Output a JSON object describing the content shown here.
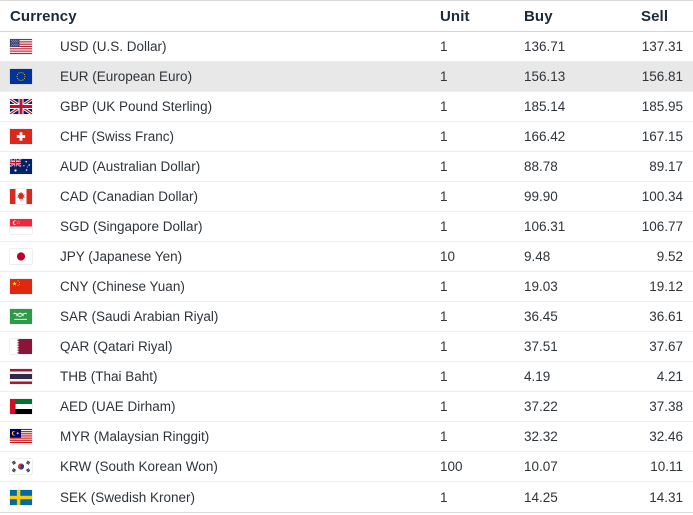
{
  "table": {
    "columns": {
      "currency": "Currency",
      "unit": "Unit",
      "buy": "Buy",
      "sell": "Sell"
    },
    "rows": [
      {
        "code": "USD",
        "label": "USD (U.S. Dollar)",
        "flag": "us-flag-icon",
        "unit": "1",
        "buy": "136.71",
        "sell": "137.31",
        "highlighted": false
      },
      {
        "code": "EUR",
        "label": "EUR (European Euro)",
        "flag": "eu-flag-icon",
        "unit": "1",
        "buy": "156.13",
        "sell": "156.81",
        "highlighted": true
      },
      {
        "code": "GBP",
        "label": "GBP (UK Pound Sterling)",
        "flag": "uk-flag-icon",
        "unit": "1",
        "buy": "185.14",
        "sell": "185.95",
        "highlighted": false
      },
      {
        "code": "CHF",
        "label": "CHF (Swiss Franc)",
        "flag": "switzerland-flag-icon",
        "unit": "1",
        "buy": "166.42",
        "sell": "167.15",
        "highlighted": false
      },
      {
        "code": "AUD",
        "label": "AUD (Australian Dollar)",
        "flag": "australia-flag-icon",
        "unit": "1",
        "buy": "88.78",
        "sell": "89.17",
        "highlighted": false
      },
      {
        "code": "CAD",
        "label": "CAD (Canadian Dollar)",
        "flag": "canada-flag-icon",
        "unit": "1",
        "buy": "99.90",
        "sell": "100.34",
        "highlighted": false
      },
      {
        "code": "SGD",
        "label": "SGD (Singapore Dollar)",
        "flag": "singapore-flag-icon",
        "unit": "1",
        "buy": "106.31",
        "sell": "106.77",
        "highlighted": false
      },
      {
        "code": "JPY",
        "label": "JPY (Japanese Yen)",
        "flag": "japan-flag-icon",
        "unit": "10",
        "buy": "9.48",
        "sell": "9.52",
        "highlighted": false
      },
      {
        "code": "CNY",
        "label": "CNY (Chinese Yuan)",
        "flag": "china-flag-icon",
        "unit": "1",
        "buy": "19.03",
        "sell": "19.12",
        "highlighted": false
      },
      {
        "code": "SAR",
        "label": "SAR (Saudi Arabian Riyal)",
        "flag": "saudi-arabia-flag-icon",
        "unit": "1",
        "buy": "36.45",
        "sell": "36.61",
        "highlighted": false
      },
      {
        "code": "QAR",
        "label": "QAR (Qatari Riyal)",
        "flag": "qatar-flag-icon",
        "unit": "1",
        "buy": "37.51",
        "sell": "37.67",
        "highlighted": false
      },
      {
        "code": "THB",
        "label": "THB (Thai Baht)",
        "flag": "thailand-flag-icon",
        "unit": "1",
        "buy": "4.19",
        "sell": "4.21",
        "highlighted": false
      },
      {
        "code": "AED",
        "label": "AED (UAE Dirham)",
        "flag": "uae-flag-icon",
        "unit": "1",
        "buy": "37.22",
        "sell": "37.38",
        "highlighted": false
      },
      {
        "code": "MYR",
        "label": "MYR (Malaysian Ringgit)",
        "flag": "malaysia-flag-icon",
        "unit": "1",
        "buy": "32.32",
        "sell": "32.46",
        "highlighted": false
      },
      {
        "code": "KRW",
        "label": "KRW (South Korean Won)",
        "flag": "south-korea-flag-icon",
        "unit": "100",
        "buy": "10.07",
        "sell": "10.11",
        "highlighted": false
      },
      {
        "code": "SEK",
        "label": "SEK (Swedish Kroner)",
        "flag": "sweden-flag-icon",
        "unit": "1",
        "buy": "14.25",
        "sell": "14.31",
        "highlighted": false
      }
    ]
  },
  "colors": {
    "header_text": "#1b2a38",
    "row_text": "#2e343a",
    "highlight_row_bg": "#e8e8e8",
    "row_separator": "#ededed",
    "table_border": "#d9d9d9"
  }
}
